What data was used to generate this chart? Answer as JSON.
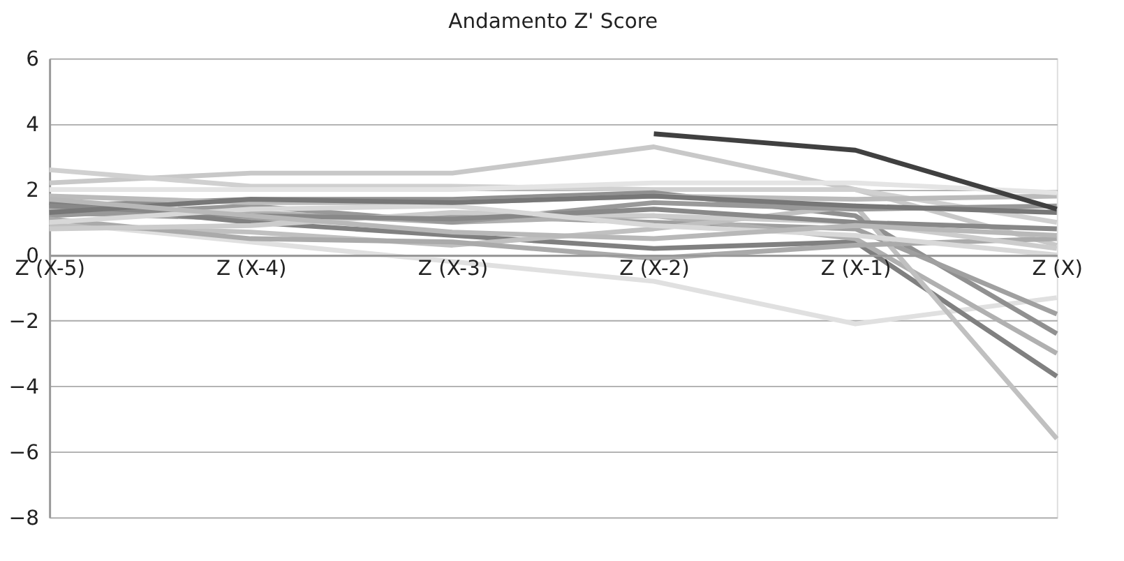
{
  "chart_data": {
    "type": "line",
    "title": "Andamento Z' Score",
    "categories": [
      "Z (X-5)",
      "Z (X-4)",
      "Z (X-3)",
      "Z (X-2)",
      "Z (X-1)",
      "Z (X)"
    ],
    "ylim": [
      -8,
      6
    ],
    "yticks": [
      -8,
      -6,
      -4,
      -2,
      0,
      2,
      4,
      6
    ],
    "grid": "y",
    "legend": false,
    "marker": "none",
    "line_style": "solid",
    "series": [
      {
        "color": "#c8c8c8",
        "values": [
          2.2,
          2.5,
          2.5,
          3.3,
          2.0,
          0.3
        ]
      },
      {
        "color": "#d0d0d0",
        "values": [
          2.6,
          2.1,
          2.1,
          2.0,
          2.0,
          1.0
        ]
      },
      {
        "color": "#e0e0e0",
        "values": [
          1.0,
          0.4,
          -0.2,
          -0.8,
          -2.1,
          -1.3
        ]
      },
      {
        "color": "#909090",
        "values": [
          1.5,
          1.7,
          1.7,
          1.9,
          1.2,
          -2.4
        ]
      },
      {
        "color": "#a0a0a0",
        "values": [
          1.3,
          1.1,
          1.2,
          1.0,
          0.8,
          -1.8
        ]
      },
      {
        "color": "#808080",
        "values": [
          1.6,
          1.0,
          0.6,
          0.2,
          0.4,
          -3.7
        ]
      },
      {
        "color": "#b0b0b0",
        "values": [
          1.4,
          1.3,
          1.0,
          1.2,
          0.5,
          -3.0
        ]
      },
      {
        "color": "#c0c0c0",
        "values": [
          0.9,
          0.7,
          0.3,
          0.8,
          1.5,
          -5.6
        ]
      },
      {
        "color": "#999999",
        "values": [
          1.2,
          1.5,
          1.0,
          1.6,
          1.4,
          1.5
        ]
      },
      {
        "color": "#bbbbbb",
        "values": [
          1.8,
          1.6,
          1.6,
          1.8,
          1.7,
          1.8
        ]
      },
      {
        "color": "#aaaaaa",
        "values": [
          1.1,
          0.5,
          0.4,
          -0.1,
          0.3,
          0.5
        ]
      },
      {
        "color": "#cccccc",
        "values": [
          0.8,
          0.9,
          1.3,
          1.2,
          1.0,
          0.2
        ]
      },
      {
        "color": "#888888",
        "values": [
          1.5,
          1.2,
          1.1,
          1.4,
          1.0,
          0.8
        ]
      },
      {
        "color": "#d8d8d8",
        "values": [
          1.0,
          1.4,
          1.5,
          0.9,
          0.6,
          0.0
        ]
      },
      {
        "color": "#777777",
        "values": [
          1.3,
          1.7,
          1.6,
          1.8,
          1.5,
          1.3
        ]
      },
      {
        "color": "#b8b8b8",
        "values": [
          1.7,
          1.2,
          0.7,
          0.5,
          0.9,
          0.6
        ]
      },
      {
        "color": "#e4e4e4",
        "values": [
          2.0,
          2.0,
          2.0,
          2.2,
          2.2,
          1.9
        ]
      },
      {
        "color": "#404040",
        "values": [
          null,
          null,
          null,
          3.7,
          3.2,
          1.4
        ]
      }
    ]
  }
}
